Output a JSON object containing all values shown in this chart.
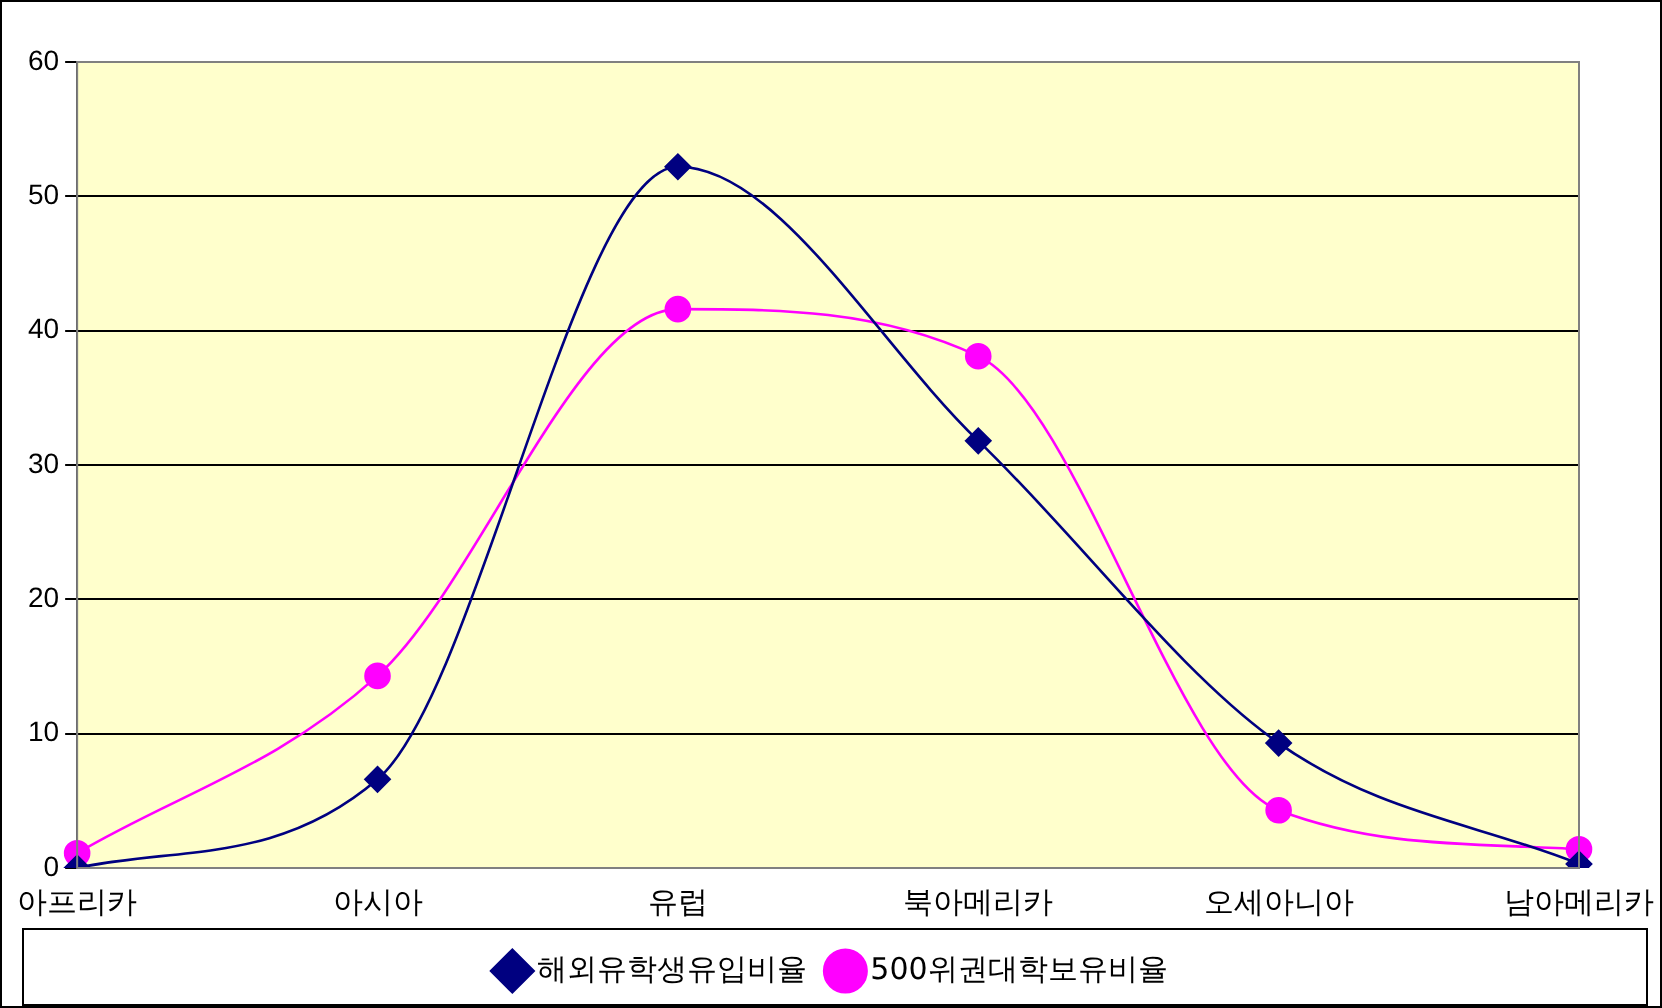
{
  "chart_data": {
    "type": "line",
    "categories": [
      "아프리카",
      "아시아",
      "유럽",
      "북아메리카",
      "오세아니아",
      "남아메리카"
    ],
    "series": [
      {
        "name": "해외유학생유입비율",
        "color": "#000080",
        "marker": "diamond",
        "values": [
          0,
          6.6,
          52.2,
          31.8,
          9.3,
          0.3
        ]
      },
      {
        "name": "500위권대학보유비율",
        "color": "#ff00ff",
        "marker": "circle",
        "values": [
          1.1,
          14.3,
          41.6,
          38.1,
          4.3,
          1.4
        ]
      }
    ],
    "ylim": [
      0,
      60
    ],
    "yticks": [
      0,
      10,
      20,
      30,
      40,
      50,
      60
    ],
    "grid": "y",
    "legend": "bottom",
    "line_style": "solid"
  }
}
